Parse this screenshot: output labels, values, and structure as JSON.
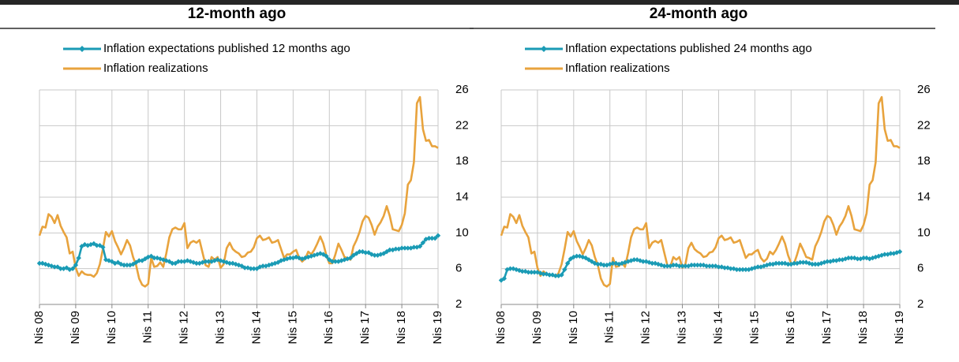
{
  "chart_data": [
    {
      "type": "line",
      "title": "12-month ago",
      "categories": [
        "Nis 08",
        null,
        null,
        null,
        null,
        null,
        null,
        null,
        null,
        null,
        null,
        null,
        "Nis 09",
        null,
        null,
        null,
        null,
        null,
        null,
        null,
        null,
        null,
        null,
        null,
        "Nis 10",
        null,
        null,
        null,
        null,
        null,
        null,
        null,
        null,
        null,
        null,
        null,
        "Nis 11",
        null,
        null,
        null,
        null,
        null,
        null,
        null,
        null,
        null,
        null,
        null,
        "Nis 12",
        null,
        null,
        null,
        null,
        null,
        null,
        null,
        null,
        null,
        null,
        null,
        "Nis 13",
        null,
        null,
        null,
        null,
        null,
        null,
        null,
        null,
        null,
        null,
        null,
        "Nis 14",
        null,
        null,
        null,
        null,
        null,
        null,
        null,
        null,
        null,
        null,
        null,
        "Nis 15",
        null,
        null,
        null,
        null,
        null,
        null,
        null,
        null,
        null,
        null,
        null,
        "Nis 16",
        null,
        null,
        null,
        null,
        null,
        null,
        null,
        null,
        null,
        null,
        null,
        "Nis 17",
        null,
        null,
        null,
        null,
        null,
        null,
        null,
        null,
        null,
        null,
        null,
        "Nis 18",
        null,
        null,
        null,
        null,
        null,
        null,
        null,
        null,
        null,
        null,
        null,
        "Nis 19"
      ],
      "series": [
        {
          "name": "Inflation expectations published 12 months ago",
          "color": "#1a9bb5",
          "marker": "diamond",
          "values": [
            6.6,
            6.6,
            6.5,
            6.4,
            6.3,
            6.2,
            6.2,
            6.0,
            6.0,
            6.1,
            5.9,
            6.0,
            6.4,
            7.2,
            8.5,
            8.7,
            8.6,
            8.7,
            8.8,
            8.6,
            8.6,
            8.4,
            7.0,
            6.9,
            6.8,
            6.6,
            6.7,
            6.5,
            6.4,
            6.4,
            6.4,
            6.5,
            6.7,
            6.9,
            6.9,
            7.1,
            7.3,
            7.4,
            7.2,
            7.2,
            7.1,
            7.0,
            6.9,
            6.8,
            6.6,
            6.6,
            6.8,
            6.8,
            6.8,
            6.9,
            6.8,
            6.7,
            6.6,
            6.6,
            6.7,
            6.8,
            6.8,
            6.8,
            6.9,
            7.0,
            6.9,
            6.8,
            6.7,
            6.6,
            6.6,
            6.5,
            6.4,
            6.3,
            6.1,
            6.1,
            6.0,
            6.0,
            6.0,
            6.2,
            6.3,
            6.3,
            6.4,
            6.5,
            6.6,
            6.7,
            6.9,
            7.0,
            7.1,
            7.2,
            7.2,
            7.3,
            7.2,
            7.1,
            7.2,
            7.3,
            7.4,
            7.5,
            7.6,
            7.7,
            7.6,
            7.4,
            7.0,
            6.8,
            6.8,
            6.8,
            6.9,
            7.0,
            7.1,
            7.2,
            7.5,
            7.7,
            7.9,
            7.9,
            7.8,
            7.8,
            7.6,
            7.5,
            7.5,
            7.6,
            7.7,
            7.9,
            8.1,
            8.1,
            8.2,
            8.2,
            8.3,
            8.3,
            8.3,
            8.3,
            8.4,
            8.4,
            8.5,
            8.9,
            9.3,
            9.4,
            9.4,
            9.4,
            9.7
          ]
        },
        {
          "name": "Inflation realizations",
          "color": "#e8a33d",
          "values": [
            9.7,
            10.7,
            10.6,
            12.1,
            11.8,
            11.1,
            12.0,
            10.8,
            10.1,
            9.5,
            7.7,
            7.9,
            6.1,
            5.2,
            5.7,
            5.4,
            5.3,
            5.3,
            5.1,
            5.5,
            6.5,
            8.2,
            10.1,
            9.6,
            10.2,
            9.1,
            8.4,
            7.6,
            8.3,
            9.2,
            8.6,
            7.3,
            6.4,
            4.9,
            4.2,
            4.0,
            4.3,
            7.2,
            6.2,
            6.3,
            6.7,
            6.2,
            7.7,
            9.5,
            10.4,
            10.6,
            10.4,
            10.4,
            11.1,
            8.3,
            8.9,
            9.1,
            8.9,
            9.2,
            7.8,
            6.4,
            6.2,
            7.3,
            7.0,
            7.3,
            6.1,
            6.5,
            8.3,
            8.9,
            8.2,
            7.9,
            7.7,
            7.3,
            7.4,
            7.8,
            7.9,
            8.4,
            9.4,
            9.7,
            9.2,
            9.3,
            9.5,
            8.9,
            9.0,
            9.2,
            8.2,
            7.2,
            7.6,
            7.6,
            7.9,
            8.1,
            7.2,
            6.8,
            7.1,
            7.9,
            7.6,
            8.1,
            8.8,
            9.6,
            8.8,
            7.5,
            6.6,
            6.6,
            7.6,
            8.8,
            8.1,
            7.3,
            7.2,
            7.0,
            8.5,
            9.2,
            10.1,
            11.3,
            11.9,
            11.7,
            10.9,
            9.8,
            10.7,
            11.2,
            11.9,
            13.0,
            11.9,
            10.4,
            10.3,
            10.2,
            10.9,
            12.2,
            15.4,
            15.9,
            17.9,
            24.5,
            25.2,
            21.6,
            20.3,
            20.4,
            19.7,
            19.7,
            19.5
          ]
        }
      ],
      "ylim": [
        2,
        26
      ],
      "yticks": [
        2,
        6,
        10,
        14,
        18,
        22,
        26
      ],
      "grid": true,
      "y_axis_side": "right"
    },
    {
      "type": "line",
      "title": "24-month ago",
      "categories": [
        "Nis 08",
        null,
        null,
        null,
        null,
        null,
        null,
        null,
        null,
        null,
        null,
        null,
        "Nis 09",
        null,
        null,
        null,
        null,
        null,
        null,
        null,
        null,
        null,
        null,
        null,
        "Nis 10",
        null,
        null,
        null,
        null,
        null,
        null,
        null,
        null,
        null,
        null,
        null,
        "Nis 11",
        null,
        null,
        null,
        null,
        null,
        null,
        null,
        null,
        null,
        null,
        null,
        "Nis 12",
        null,
        null,
        null,
        null,
        null,
        null,
        null,
        null,
        null,
        null,
        null,
        "Nis 13",
        null,
        null,
        null,
        null,
        null,
        null,
        null,
        null,
        null,
        null,
        null,
        "Nis 14",
        null,
        null,
        null,
        null,
        null,
        null,
        null,
        null,
        null,
        null,
        null,
        "Nis 15",
        null,
        null,
        null,
        null,
        null,
        null,
        null,
        null,
        null,
        null,
        null,
        "Nis 16",
        null,
        null,
        null,
        null,
        null,
        null,
        null,
        null,
        null,
        null,
        null,
        "Nis 17",
        null,
        null,
        null,
        null,
        null,
        null,
        null,
        null,
        null,
        null,
        null,
        "Nis 18",
        null,
        null,
        null,
        null,
        null,
        null,
        null,
        null,
        null,
        null,
        null,
        "Nis 19"
      ],
      "series": [
        {
          "name": "Inflation expectations published 24 months ago",
          "color": "#1a9bb5",
          "marker": "diamond",
          "values": [
            4.7,
            4.9,
            5.9,
            6.0,
            6.0,
            5.9,
            5.8,
            5.7,
            5.7,
            5.6,
            5.6,
            5.6,
            5.6,
            5.5,
            5.4,
            5.4,
            5.3,
            5.3,
            5.2,
            5.2,
            5.3,
            5.9,
            6.6,
            7.1,
            7.3,
            7.4,
            7.4,
            7.3,
            7.2,
            7.0,
            6.8,
            6.6,
            6.5,
            6.5,
            6.4,
            6.4,
            6.5,
            6.6,
            6.6,
            6.5,
            6.6,
            6.7,
            6.8,
            6.9,
            7.0,
            7.0,
            6.9,
            6.8,
            6.8,
            6.7,
            6.6,
            6.6,
            6.5,
            6.4,
            6.3,
            6.3,
            6.3,
            6.4,
            6.4,
            6.3,
            6.3,
            6.3,
            6.3,
            6.4,
            6.4,
            6.4,
            6.4,
            6.4,
            6.3,
            6.3,
            6.3,
            6.3,
            6.2,
            6.2,
            6.1,
            6.1,
            6.0,
            6.0,
            5.9,
            5.9,
            5.9,
            5.9,
            5.9,
            6.0,
            6.1,
            6.2,
            6.2,
            6.3,
            6.4,
            6.5,
            6.5,
            6.6,
            6.6,
            6.6,
            6.6,
            6.5,
            6.5,
            6.6,
            6.6,
            6.7,
            6.7,
            6.7,
            6.6,
            6.5,
            6.5,
            6.5,
            6.6,
            6.7,
            6.8,
            6.8,
            6.9,
            6.9,
            7.0,
            7.0,
            7.1,
            7.2,
            7.2,
            7.2,
            7.1,
            7.1,
            7.2,
            7.2,
            7.1,
            7.2,
            7.3,
            7.4,
            7.5,
            7.6,
            7.6,
            7.7,
            7.7,
            7.8,
            7.9
          ]
        },
        {
          "name": "Inflation realizations",
          "color": "#e8a33d",
          "values": [
            9.7,
            10.7,
            10.6,
            12.1,
            11.8,
            11.1,
            12.0,
            10.8,
            10.1,
            9.5,
            7.7,
            7.9,
            6.1,
            5.2,
            5.7,
            5.4,
            5.3,
            5.3,
            5.1,
            5.5,
            6.5,
            8.2,
            10.1,
            9.6,
            10.2,
            9.1,
            8.4,
            7.6,
            8.3,
            9.2,
            8.6,
            7.3,
            6.4,
            4.9,
            4.2,
            4.0,
            4.3,
            7.2,
            6.2,
            6.3,
            6.7,
            6.2,
            7.7,
            9.5,
            10.4,
            10.6,
            10.4,
            10.4,
            11.1,
            8.3,
            8.9,
            9.1,
            8.9,
            9.2,
            7.8,
            6.4,
            6.2,
            7.3,
            7.0,
            7.3,
            6.1,
            6.5,
            8.3,
            8.9,
            8.2,
            7.9,
            7.7,
            7.3,
            7.4,
            7.8,
            7.9,
            8.4,
            9.4,
            9.7,
            9.2,
            9.3,
            9.5,
            8.9,
            9.0,
            9.2,
            8.2,
            7.2,
            7.6,
            7.6,
            7.9,
            8.1,
            7.2,
            6.8,
            7.1,
            7.9,
            7.6,
            8.1,
            8.8,
            9.6,
            8.8,
            7.5,
            6.6,
            6.6,
            7.6,
            8.8,
            8.1,
            7.3,
            7.2,
            7.0,
            8.5,
            9.2,
            10.1,
            11.3,
            11.9,
            11.7,
            10.9,
            9.8,
            10.7,
            11.2,
            11.9,
            13.0,
            11.9,
            10.4,
            10.3,
            10.2,
            10.9,
            12.2,
            15.4,
            15.9,
            17.9,
            24.5,
            25.2,
            21.6,
            20.3,
            20.4,
            19.7,
            19.7,
            19.5
          ]
        }
      ],
      "ylim": [
        2,
        26
      ],
      "yticks": [
        2,
        6,
        10,
        14,
        18,
        22,
        26
      ],
      "grid": true,
      "y_axis_side": "right"
    }
  ]
}
